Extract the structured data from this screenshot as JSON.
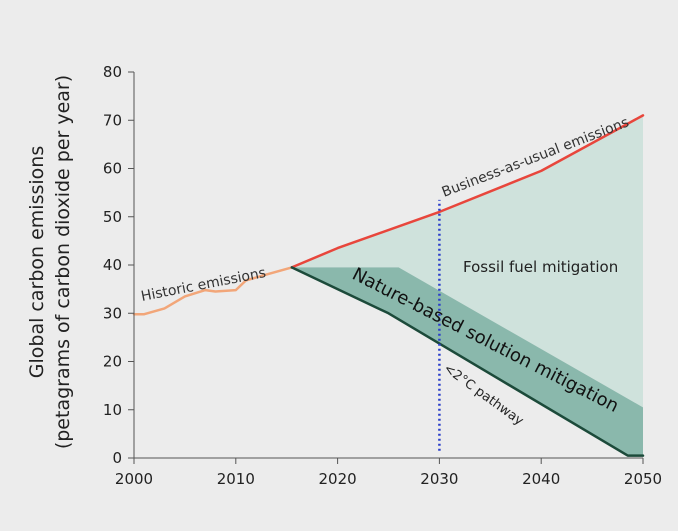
{
  "chart_data": {
    "type": "area",
    "xlabel": "",
    "ylabel_line1": "Global carbon emissions",
    "ylabel_line2": "(petagrams of carbon dioxide per year)",
    "xlim": [
      2000,
      2050
    ],
    "ylim": [
      0,
      80
    ],
    "x_ticks": [
      2000,
      2010,
      2020,
      2030,
      2040,
      2050
    ],
    "y_ticks": [
      0,
      10,
      20,
      30,
      40,
      50,
      60,
      70,
      80
    ],
    "grid": false,
    "series": [
      {
        "name": "Historic emissions",
        "x": [
          2000,
          2001,
          2003,
          2005,
          2007,
          2008,
          2010,
          2011,
          2013,
          2015.5
        ],
        "y": [
          29.8,
          29.8,
          31,
          33.5,
          34.8,
          34.5,
          34.8,
          36.8,
          38,
          39.5
        ]
      },
      {
        "name": "Business-as-usual emissions",
        "x": [
          2015.5,
          2020,
          2030,
          2040,
          2050
        ],
        "y": [
          39.5,
          43.5,
          51,
          59.5,
          71
        ]
      },
      {
        "name": "<2°C pathway",
        "x": [
          2015.5,
          2025,
          2048.5,
          2050
        ],
        "y": [
          39.5,
          30,
          0.5,
          0.5
        ]
      }
    ],
    "areas": [
      {
        "name": "Fossil fuel mitigation",
        "upper": {
          "x": [
            2015.5,
            2020,
            2030,
            2040,
            2050
          ],
          "y": [
            39.5,
            43.5,
            51,
            59.5,
            71
          ]
        },
        "lower": {
          "x": [
            2015.5,
            2026,
            2050
          ],
          "y": [
            39.5,
            39.5,
            10.5
          ]
        }
      },
      {
        "name": "Nature-based solution mitigation",
        "upper": {
          "x": [
            2015.5,
            2026,
            2050
          ],
          "y": [
            39.5,
            39.5,
            10.5
          ]
        },
        "lower": {
          "x": [
            2015.5,
            2025,
            2048.5,
            2050
          ],
          "y": [
            39.5,
            30,
            0.5,
            0.5
          ]
        }
      }
    ],
    "reference_line": {
      "x": 2030,
      "y_range": [
        1.5,
        53.5
      ],
      "style": "dotted"
    },
    "colors": {
      "background": "#ececec",
      "historic": "#f2a679",
      "bau": "#e8463c",
      "pathway": "#1c4a3a",
      "fossil_area": "#cfe2dc",
      "nature_area": "#8ab8ac",
      "reference": "#2b3ec9",
      "axis": "#555555",
      "text": "#222222"
    }
  }
}
